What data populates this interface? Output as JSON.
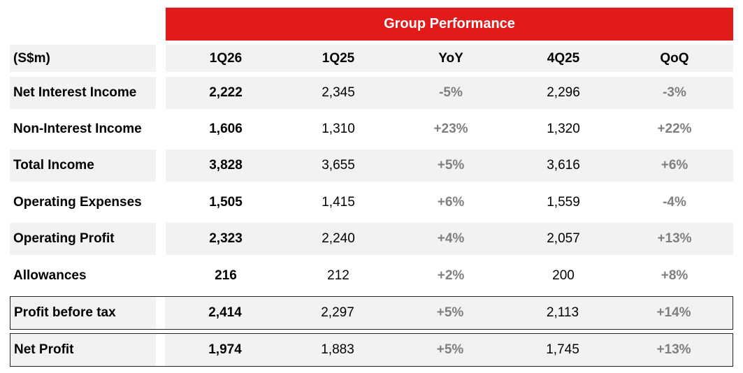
{
  "title": "Group Performance",
  "columns": [
    "(S$m)",
    "1Q26",
    "1Q25",
    "YoY",
    "4Q25",
    "QoQ"
  ],
  "rows": [
    {
      "label": "Net Interest Income",
      "q126": "2,222",
      "q125": "2,345",
      "yoy": "-5%",
      "q425": "2,296",
      "qoq": "-3%"
    },
    {
      "label": "Non-Interest Income",
      "q126": "1,606",
      "q125": "1,310",
      "yoy": "+23%",
      "q425": "1,320",
      "qoq": "+22%"
    },
    {
      "label": "Total Income",
      "q126": "3,828",
      "q125": "3,655",
      "yoy": "+5%",
      "q425": "3,616",
      "qoq": "+6%"
    },
    {
      "label": "Operating Expenses",
      "q126": "1,505",
      "q125": "1,415",
      "yoy": "+6%",
      "q425": "1,559",
      "qoq": "-4%"
    },
    {
      "label": "Operating Profit",
      "q126": "2,323",
      "q125": "2,240",
      "yoy": "+4%",
      "q425": "2,057",
      "qoq": "+13%"
    },
    {
      "label": "Allowances",
      "q126": "216",
      "q125": "212",
      "yoy": "+2%",
      "q425": "200",
      "qoq": "+8%"
    },
    {
      "label": "Profit before tax",
      "q126": "2,414",
      "q125": "2,297",
      "yoy": "+5%",
      "q425": "2,113",
      "qoq": "+14%"
    },
    {
      "label": "Net Profit",
      "q126": "1,974",
      "q125": "1,883",
      "yoy": "+5%",
      "q425": "1,745",
      "qoq": "+13%"
    }
  ],
  "colors": {
    "banner": "#e31a1a",
    "change_text": "#7f7f7f",
    "row_shade": "#f2f2f2"
  }
}
